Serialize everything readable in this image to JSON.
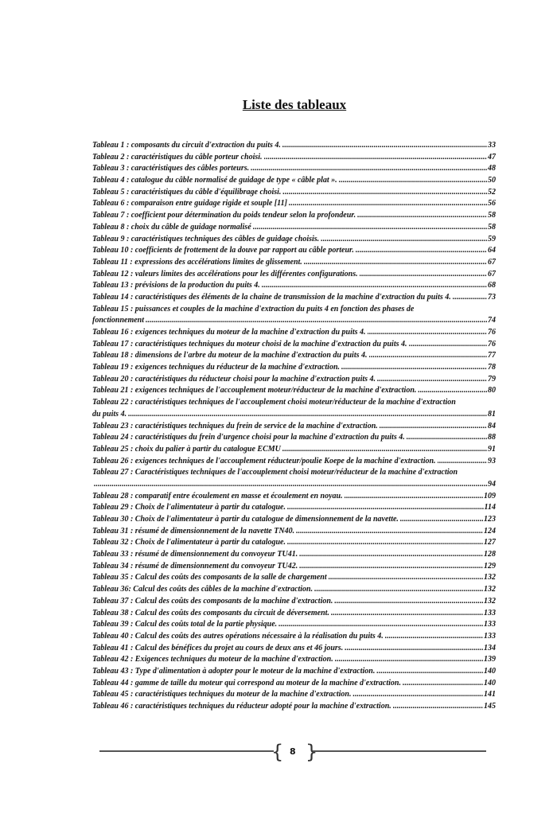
{
  "title": "Liste des tableaux",
  "entries": [
    {
      "label": "Tableau 1 : composants du circuit d'extraction du puits 4.",
      "page": "33"
    },
    {
      "label": "Tableau 2 : caractéristiques du câble porteur choisi.",
      "page": "47"
    },
    {
      "label": "Tableau 3 : caractéristiques des câbles porteurs.",
      "page": "48"
    },
    {
      "label": "Tableau 4 :  catalogue du câble normalisé de guidage de type « câble plat ».",
      "page": "50"
    },
    {
      "label": "Tableau 5 : caractéristiques du câble d'équilibrage choisi.",
      "page": "52"
    },
    {
      "label": "Tableau 6 : comparaison entre guidage rigide et souple [11]",
      "page": "56"
    },
    {
      "label": "Tableau 7 : coefficient pour détermination du poids tendeur selon la profondeur.",
      "page": "58"
    },
    {
      "label": "Tableau 8 :  choix du câble de guidage normalisé",
      "page": "58"
    },
    {
      "label": "Tableau 9 : caractéristiques techniques des câbles de guidage choisis.",
      "page": "59"
    },
    {
      "label": "Tableau 10 : coefficients de frottement de la douve par rapport au câble porteur.",
      "page": "64"
    },
    {
      "label": "Tableau 11 : expressions des accélérations limites de glissement.",
      "page": "67"
    },
    {
      "label": "Tableau 12 : valeurs limites des accélérations pour les différentes configurations.",
      "page": "67"
    },
    {
      "label": "Tableau 13 : prévisions de la production du puits 4.",
      "page": "68"
    },
    {
      "label": "Tableau 14 : caractéristiques des éléments de la chaine de transmission de la machine d'extraction du puits 4.",
      "page": "73"
    },
    {
      "label": "Tableau 15 :  puissances et couples de la machine d'extraction du puits 4 en fonction des phases de",
      "continuation": "fonctionnement",
      "page": "74"
    },
    {
      "label": "Tableau 16 : exigences techniques du moteur de la machine d'extraction du puits 4.",
      "page": "76"
    },
    {
      "label": "Tableau 17 : caractéristiques techniques du moteur choisi de la machine d'extraction du puits 4.",
      "page": "76"
    },
    {
      "label": "Tableau 18 : dimensions de l'arbre du moteur de la machine d'extraction du puits 4.",
      "page": "77"
    },
    {
      "label": "Tableau 19 : exigences techniques du réducteur de la machine d'extraction.",
      "page": "78"
    },
    {
      "label": "Tableau 20 : caractéristiques du réducteur choisi pour la machine d'extraction puits 4.",
      "page": "79"
    },
    {
      "label": "Tableau 21 : exigences techniques de l'accouplement moteur/réducteur de la machine d'extraction.",
      "page": "80"
    },
    {
      "label": "Tableau 22 : caractéristiques techniques de l'accouplement choisi moteur/réducteur de la machine d'extraction",
      "continuation": "du puits 4.",
      "page": "81"
    },
    {
      "label": "Tableau 23 : caractéristiques techniques du frein de service de la machine d'extraction.",
      "page": "84"
    },
    {
      "label": "Tableau 24 : caractéristiques du frein d'urgence choisi pour la machine d'extraction du puits 4.",
      "page": "88"
    },
    {
      "label": "Tableau 25 : choix du palier à partir du catalogue ECMU",
      "page": "91"
    },
    {
      "label": "Tableau 26 : exigences techniques de l'accouplement réducteur/poulie Koepe de la machine d'extraction.",
      "page": "93"
    },
    {
      "label": "Tableau 27 : Caractéristiques techniques de l'accouplement choisi moteur/réducteur de la machine d'extraction",
      "continuation": "",
      "page": "94"
    },
    {
      "label": "Tableau 28 : comparatif entre écoulement en masse et écoulement en noyau.",
      "page": "109"
    },
    {
      "label": "Tableau 29 : Choix de l'alimentateur à partir du catalogue.",
      "page": "114"
    },
    {
      "label": "Tableau 30 : Choix de l'alimentateur à partir du catalogue de dimensionnement de la navette.",
      "page": "123"
    },
    {
      "label": "Tableau 31 : résumé de dimensionnement de la navette TN40.",
      "page": "124"
    },
    {
      "label": "Tableau 32 : Choix de l'alimentateur à partir du catalogue.",
      "page": "127"
    },
    {
      "label": "Tableau 33 : résumé de dimensionnement du convoyeur TU41.",
      "page": "128"
    },
    {
      "label": "Tableau 34 : résumé de dimensionnement du convoyeur TU42.",
      "page": "129"
    },
    {
      "label": "Tableau 35 : Calcul des coûts des composants de la salle de chargement",
      "page": "132"
    },
    {
      "label": "Tableau 36: Calcul des coûts des câbles de la machine d'extraction.",
      "page": "132"
    },
    {
      "label": "Tableau 37 : Calcul des coûts des composants de la machine d'extraction.",
      "page": "132"
    },
    {
      "label": "Tableau 38 : Calcul des coûts des composants du circuit de déversement.",
      "page": "133"
    },
    {
      "label": "Tableau 39 : Calcul des coûts total de la partie physique.",
      "page": "133"
    },
    {
      "label": "Tableau 40 : Calcul des coûts des autres opérations nécessaire à la réalisation du puits 4.",
      "page": "133"
    },
    {
      "label": "Tableau 41 : Calcul des bénéfices du projet au cours de deux ans et 46 jours.",
      "page": "134"
    },
    {
      "label": "Tableau 42 : Exigences techniques du moteur de la machine d'extraction.",
      "page": "139"
    },
    {
      "label": "Tableau 43 : Type d'alimentation à adopter pour le moteur de la machine d'extraction.",
      "page": "140"
    },
    {
      "label": "Tableau 44 : gamme de taille du moteur qui correspond au moteur de la machine d'extraction.",
      "page": "140"
    },
    {
      "label": "Tableau 45 : caractéristiques techniques du moteur de la machine d'extraction.",
      "page": "141"
    },
    {
      "label": "Tableau 46 : caractéristiques techniques du réducteur adopté pour la machine d'extraction.",
      "page": "145"
    }
  ],
  "footer": {
    "page_number": "8"
  }
}
